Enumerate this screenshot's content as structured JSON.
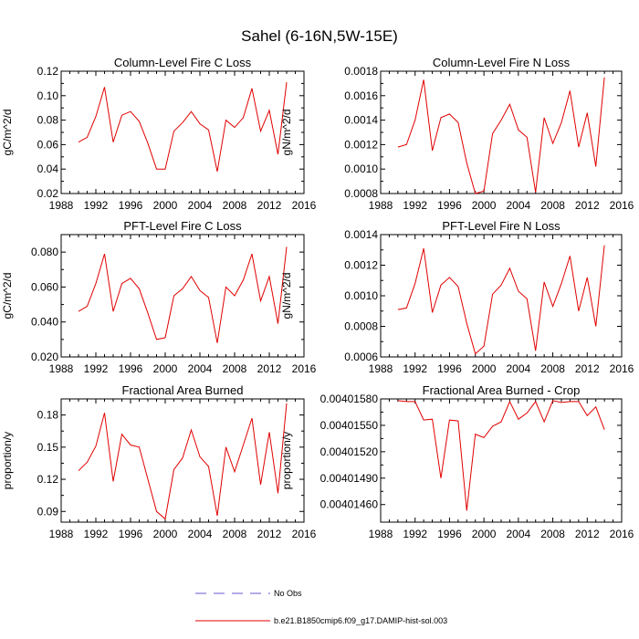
{
  "figure": {
    "title": "Sahel (6-16N,5W-15E)"
  },
  "legend": {
    "items": [
      {
        "label": "No Obs",
        "color": "#6a5acd",
        "style": "dashed"
      },
      {
        "label": "b.e21.B1850cmip6.f09_g17.DAMIP-hist-sol.003",
        "color": "#e00000",
        "style": "solid"
      }
    ]
  },
  "chart_data": [
    {
      "type": "line",
      "title": "Column-Level Fire C Loss",
      "ylabel": "gC/m^2/d",
      "xlim": [
        1988,
        2016
      ],
      "ylim": [
        0.02,
        0.12
      ],
      "xticks": [
        "1988",
        "1992",
        "1996",
        "2000",
        "2004",
        "2008",
        "2012",
        "2016"
      ],
      "yticks": [
        "0.02",
        "0.04",
        "0.06",
        "0.08",
        "0.10",
        "0.12"
      ],
      "color": "#e00000",
      "x": [
        1990,
        1991,
        1992,
        1993,
        1994,
        1995,
        1996,
        1997,
        1998,
        1999,
        2000,
        2001,
        2002,
        2003,
        2004,
        2005,
        2006,
        2007,
        2008,
        2009,
        2010,
        2011,
        2012,
        2013,
        2014
      ],
      "y": [
        0.062,
        0.066,
        0.083,
        0.107,
        0.062,
        0.084,
        0.087,
        0.079,
        0.061,
        0.04,
        0.04,
        0.071,
        0.078,
        0.087,
        0.077,
        0.072,
        0.038,
        0.08,
        0.074,
        0.082,
        0.106,
        0.071,
        0.088,
        0.052,
        0.111
      ]
    },
    {
      "type": "line",
      "title": "Column-Level Fire N Loss",
      "ylabel": "gN/m^2/d",
      "xlim": [
        1988,
        2016
      ],
      "ylim": [
        0.0008,
        0.0018
      ],
      "xticks": [
        "1988",
        "1992",
        "1996",
        "2000",
        "2004",
        "2008",
        "2012",
        "2016"
      ],
      "yticks": [
        "0.0008",
        "0.0010",
        "0.0012",
        "0.0014",
        "0.0016",
        "0.0018"
      ],
      "color": "#e00000",
      "x": [
        1990,
        1991,
        1992,
        1993,
        1994,
        1995,
        1996,
        1997,
        1998,
        1999,
        2000,
        2001,
        2002,
        2003,
        2004,
        2005,
        2006,
        2007,
        2008,
        2009,
        2010,
        2011,
        2012,
        2013,
        2014
      ],
      "y": [
        0.00118,
        0.0012,
        0.0014,
        0.00173,
        0.00115,
        0.00142,
        0.00145,
        0.00138,
        0.00105,
        0.0008,
        0.00082,
        0.00129,
        0.0014,
        0.00153,
        0.00132,
        0.00126,
        0.00081,
        0.00142,
        0.00121,
        0.00138,
        0.00164,
        0.00118,
        0.00146,
        0.00102,
        0.00175
      ]
    },
    {
      "type": "line",
      "title": "PFT-Level Fire C Loss",
      "ylabel": "gC/m^2/d",
      "xlim": [
        1988,
        2016
      ],
      "ylim": [
        0.02,
        0.09
      ],
      "xticks": [
        "1988",
        "1992",
        "1996",
        "2000",
        "2004",
        "2008",
        "2012",
        "2016"
      ],
      "yticks": [
        "0.020",
        "0.040",
        "0.060",
        "0.080"
      ],
      "ytick_values": [
        0.02,
        0.04,
        0.06,
        0.08
      ],
      "color": "#e00000",
      "x": [
        1990,
        1991,
        1992,
        1993,
        1994,
        1995,
        1996,
        1997,
        1998,
        1999,
        2000,
        2001,
        2002,
        2003,
        2004,
        2005,
        2006,
        2007,
        2008,
        2009,
        2010,
        2011,
        2012,
        2013,
        2014
      ],
      "y": [
        0.046,
        0.049,
        0.062,
        0.079,
        0.046,
        0.062,
        0.065,
        0.059,
        0.045,
        0.03,
        0.031,
        0.055,
        0.059,
        0.066,
        0.058,
        0.054,
        0.028,
        0.06,
        0.055,
        0.064,
        0.079,
        0.052,
        0.066,
        0.039,
        0.083
      ]
    },
    {
      "type": "line",
      "title": "PFT-Level Fire N Loss",
      "ylabel": "gN/m^2/d",
      "xlim": [
        1988,
        2016
      ],
      "ylim": [
        0.0006,
        0.0014
      ],
      "xticks": [
        "1988",
        "1992",
        "1996",
        "2000",
        "2004",
        "2008",
        "2012",
        "2016"
      ],
      "yticks": [
        "0.0006",
        "0.0008",
        "0.0010",
        "0.0012",
        "0.0014"
      ],
      "color": "#e00000",
      "x": [
        1990,
        1991,
        1992,
        1993,
        1994,
        1995,
        1996,
        1997,
        1998,
        1999,
        2000,
        2001,
        2002,
        2003,
        2004,
        2005,
        2006,
        2007,
        2008,
        2009,
        2010,
        2011,
        2012,
        2013,
        2014
      ],
      "y": [
        0.00091,
        0.00092,
        0.00108,
        0.00131,
        0.00089,
        0.00107,
        0.00112,
        0.00106,
        0.00082,
        0.00062,
        0.00067,
        0.00101,
        0.00107,
        0.00118,
        0.00103,
        0.00098,
        0.00064,
        0.00109,
        0.00093,
        0.00108,
        0.00126,
        0.0009,
        0.00112,
        0.0008,
        0.00133
      ]
    },
    {
      "type": "line",
      "title": "Fractional Area Burned",
      "ylabel": "proportion/y",
      "xlim": [
        1988,
        2016
      ],
      "ylim": [
        0.08,
        0.195
      ],
      "xticks": [
        "1988",
        "1992",
        "1996",
        "2000",
        "2004",
        "2008",
        "2012",
        "2016"
      ],
      "yticks": [
        "0.09",
        "0.12",
        "0.15",
        "0.18"
      ],
      "ytick_values": [
        0.09,
        0.12,
        0.15,
        0.18
      ],
      "color": "#e00000",
      "x": [
        1990,
        1991,
        1992,
        1993,
        1994,
        1995,
        1996,
        1997,
        1998,
        1999,
        2000,
        2001,
        2002,
        2003,
        2004,
        2005,
        2006,
        2007,
        2008,
        2009,
        2010,
        2011,
        2012,
        2013,
        2014
      ],
      "y": [
        0.128,
        0.136,
        0.151,
        0.182,
        0.118,
        0.162,
        0.152,
        0.15,
        0.12,
        0.09,
        0.083,
        0.129,
        0.14,
        0.166,
        0.141,
        0.132,
        0.086,
        0.15,
        0.127,
        0.152,
        0.177,
        0.115,
        0.164,
        0.107,
        0.191
      ]
    },
    {
      "type": "line",
      "title": "Fractional Area Burned - Crop",
      "ylabel": "proportion/y",
      "xlim": [
        1988,
        2016
      ],
      "ylim": [
        0.0040144,
        0.0040158
      ],
      "xticks": [
        "1988",
        "1992",
        "1996",
        "2000",
        "2004",
        "2008",
        "2012",
        "2016"
      ],
      "yticks": [
        "0.00401460",
        "0.00401490",
        "0.00401520",
        "0.00401550",
        "0.00401580"
      ],
      "ytick_values": [
        0.0040146,
        0.0040149,
        0.0040152,
        0.0040155,
        0.0040158
      ],
      "color": "#e00000",
      "x": [
        1990,
        1991,
        1992,
        1993,
        1994,
        1995,
        1996,
        1997,
        1998,
        1999,
        2000,
        2001,
        2002,
        2003,
        2004,
        2005,
        2006,
        2007,
        2008,
        2009,
        2010,
        2011,
        2012,
        2013,
        2014
      ],
      "y": [
        0.00401578,
        0.00401577,
        0.00401577,
        0.00401556,
        0.00401557,
        0.0040149,
        0.00401556,
        0.00401555,
        0.00401453,
        0.0040154,
        0.00401536,
        0.00401549,
        0.00401554,
        0.00401577,
        0.00401557,
        0.00401564,
        0.00401577,
        0.00401554,
        0.00401578,
        0.00401576,
        0.00401577,
        0.00401577,
        0.00401561,
        0.00401571,
        0.00401545
      ]
    }
  ]
}
